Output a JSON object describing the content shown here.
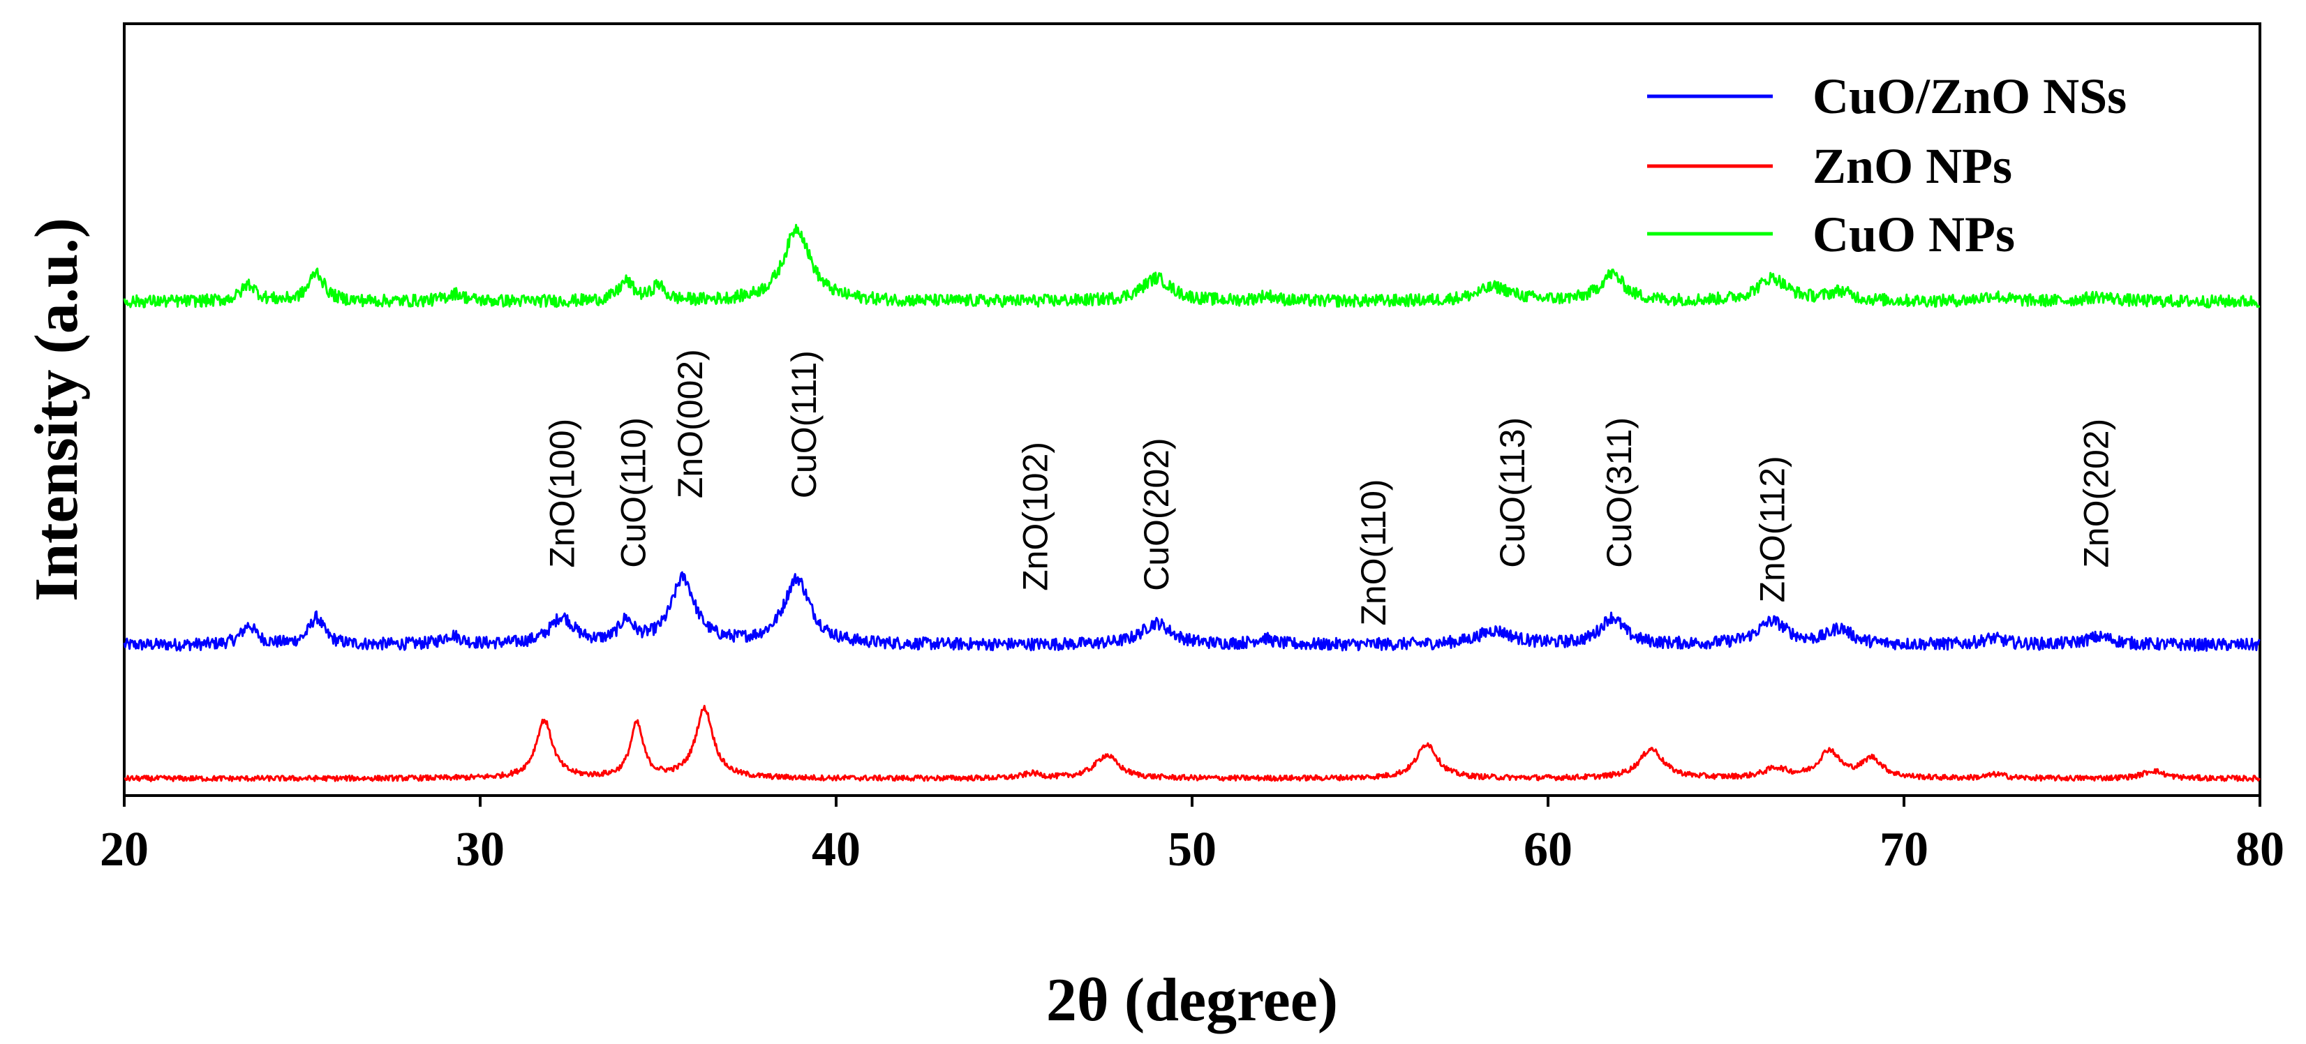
{
  "chart_data": {
    "type": "line",
    "xlabel": "2θ (degree)",
    "ylabel": "Intensity (a.u.)",
    "xlim": [
      20,
      80
    ],
    "ylim": [
      0,
      10
    ],
    "x_ticks": [
      20,
      30,
      40,
      50,
      60,
      70,
      80
    ],
    "x_tick_labels": [
      "20",
      "30",
      "40",
      "50",
      "60",
      "70",
      "80"
    ],
    "grid": false,
    "legend_position": "top-right",
    "series": [
      {
        "name": "CuO/ZnO NSs",
        "color": "#0000ff",
        "baseline": 1.95,
        "noise": 0.08,
        "peaks": [
          {
            "x": 23.5,
            "h": 0.25,
            "w": 0.25
          },
          {
            "x": 25.4,
            "h": 0.35,
            "w": 0.25
          },
          {
            "x": 29.2,
            "h": 0.12,
            "w": 0.3
          },
          {
            "x": 32.3,
            "h": 0.35,
            "w": 0.4
          },
          {
            "x": 34.1,
            "h": 0.28,
            "w": 0.25
          },
          {
            "x": 35.7,
            "h": 0.85,
            "w": 0.4
          },
          {
            "x": 38.9,
            "h": 0.85,
            "w": 0.45
          },
          {
            "x": 49.0,
            "h": 0.28,
            "w": 0.5
          },
          {
            "x": 52.0,
            "h": 0.08,
            "w": 0.3
          },
          {
            "x": 58.5,
            "h": 0.18,
            "w": 0.6
          },
          {
            "x": 61.8,
            "h": 0.35,
            "w": 0.4
          },
          {
            "x": 66.3,
            "h": 0.3,
            "w": 0.5
          },
          {
            "x": 68.2,
            "h": 0.2,
            "w": 0.4
          },
          {
            "x": 72.5,
            "h": 0.08,
            "w": 0.4
          },
          {
            "x": 75.5,
            "h": 0.1,
            "w": 0.5
          }
        ]
      },
      {
        "name": "ZnO NPs",
        "color": "#ff0000",
        "baseline": 0.22,
        "noise": 0.035,
        "peaks": [
          {
            "x": 31.8,
            "h": 0.75,
            "w": 0.28
          },
          {
            "x": 34.4,
            "h": 0.7,
            "w": 0.22
          },
          {
            "x": 36.3,
            "h": 0.9,
            "w": 0.3
          },
          {
            "x": 45.5,
            "h": 0.06,
            "w": 0.3
          },
          {
            "x": 47.6,
            "h": 0.3,
            "w": 0.4
          },
          {
            "x": 56.6,
            "h": 0.45,
            "w": 0.35
          },
          {
            "x": 62.9,
            "h": 0.38,
            "w": 0.4
          },
          {
            "x": 66.4,
            "h": 0.12,
            "w": 0.4
          },
          {
            "x": 67.9,
            "h": 0.35,
            "w": 0.35
          },
          {
            "x": 69.1,
            "h": 0.25,
            "w": 0.35
          },
          {
            "x": 72.6,
            "h": 0.05,
            "w": 0.3
          },
          {
            "x": 77.0,
            "h": 0.1,
            "w": 0.35
          }
        ]
      },
      {
        "name": "CuO NPs",
        "color": "#00ff00",
        "baseline": 6.4,
        "noise": 0.08,
        "peaks": [
          {
            "x": 23.5,
            "h": 0.22,
            "w": 0.25
          },
          {
            "x": 25.4,
            "h": 0.38,
            "w": 0.25
          },
          {
            "x": 29.3,
            "h": 0.1,
            "w": 0.3
          },
          {
            "x": 34.1,
            "h": 0.25,
            "w": 0.25
          },
          {
            "x": 35.0,
            "h": 0.2,
            "w": 0.2
          },
          {
            "x": 38.9,
            "h": 0.95,
            "w": 0.45
          },
          {
            "x": 49.0,
            "h": 0.3,
            "w": 0.5
          },
          {
            "x": 52.1,
            "h": 0.07,
            "w": 0.3
          },
          {
            "x": 58.5,
            "h": 0.18,
            "w": 0.6
          },
          {
            "x": 61.8,
            "h": 0.35,
            "w": 0.4
          },
          {
            "x": 66.3,
            "h": 0.3,
            "w": 0.5
          },
          {
            "x": 68.2,
            "h": 0.12,
            "w": 0.4
          },
          {
            "x": 72.5,
            "h": 0.07,
            "w": 0.4
          },
          {
            "x": 75.5,
            "h": 0.06,
            "w": 0.5
          }
        ]
      }
    ],
    "annotations": [
      {
        "text": "ZnO(100)",
        "x": 32.3,
        "y_bottom": 2.95
      },
      {
        "text": "CuO(110)",
        "x": 34.3,
        "y_bottom": 2.95
      },
      {
        "text": "ZnO(002)",
        "x": 35.9,
        "y_bottom": 3.85
      },
      {
        "text": "CuO(111)",
        "x": 39.1,
        "y_bottom": 3.85
      },
      {
        "text": "ZnO(102)",
        "x": 45.6,
        "y_bottom": 2.65
      },
      {
        "text": "CuO(202)",
        "x": 49.0,
        "y_bottom": 2.65
      },
      {
        "text": "ZnO(110)",
        "x": 55.1,
        "y_bottom": 2.2
      },
      {
        "text": "CuO(113)",
        "x": 59.0,
        "y_bottom": 2.95
      },
      {
        "text": "CuO(311)",
        "x": 62.0,
        "y_bottom": 2.95
      },
      {
        "text": "ZnO(112)",
        "x": 66.3,
        "y_bottom": 2.5
      },
      {
        "text": "ZnO(202)",
        "x": 75.4,
        "y_bottom": 2.95
      }
    ]
  }
}
